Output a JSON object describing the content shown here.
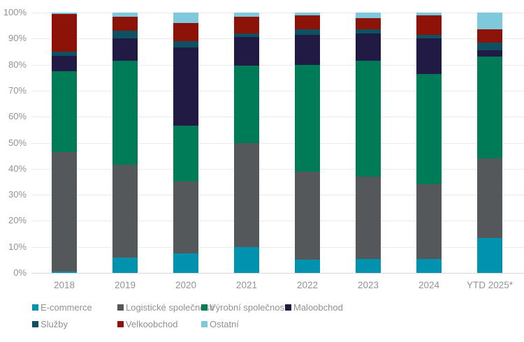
{
  "chart_data": {
    "type": "bar",
    "variant": "stacked-100-percent-column",
    "title": "",
    "xlabel": "",
    "ylabel": "",
    "ylim": [
      0,
      100
    ],
    "grid": "horizontal",
    "legend_position": "bottom",
    "y_ticks": [
      "0%",
      "10%",
      "20%",
      "30%",
      "40%",
      "50%",
      "60%",
      "70%",
      "80%",
      "90%",
      "100%"
    ],
    "categories": [
      "2018",
      "2019",
      "2020",
      "2021",
      "2022",
      "2023",
      "2024",
      "YTD 2025*"
    ],
    "series": [
      {
        "name": "E-commerce",
        "color": "#0092AE",
        "values": [
          0.5,
          6,
          7.5,
          10,
          5,
          5.5,
          5.5,
          13.5
        ]
      },
      {
        "name": "Logistické společnosti",
        "color": "#54585A",
        "values": [
          46,
          35.5,
          27.5,
          40,
          34,
          31.5,
          28.5,
          30.5
        ]
      },
      {
        "name": "Výrobní společnosti",
        "color": "#007B58",
        "values": [
          31,
          40,
          21.5,
          29.5,
          41,
          44.5,
          42.5,
          39
        ]
      },
      {
        "name": "Maloobchod",
        "color": "#201A45",
        "values": [
          6,
          8.5,
          30,
          11,
          11.5,
          10.5,
          13.5,
          2.5
        ]
      },
      {
        "name": "Služby",
        "color": "#0E5163",
        "values": [
          1.5,
          3,
          2.5,
          1.5,
          2,
          1.5,
          1.5,
          3
        ]
      },
      {
        "name": "Velkoobchod",
        "color": "#8D1207",
        "values": [
          14.5,
          5.5,
          7,
          6.5,
          5.5,
          4.5,
          7.5,
          5
        ]
      },
      {
        "name": "Ostatní",
        "color": "#7FC9DC",
        "values": [
          0.5,
          1.5,
          4,
          1.5,
          1,
          2,
          1,
          6.5
        ]
      }
    ]
  },
  "colors": {
    "grid": "#eaeaea",
    "axis_text": "#919396",
    "legend_text": "#8e9093",
    "background": "#ffffff"
  }
}
